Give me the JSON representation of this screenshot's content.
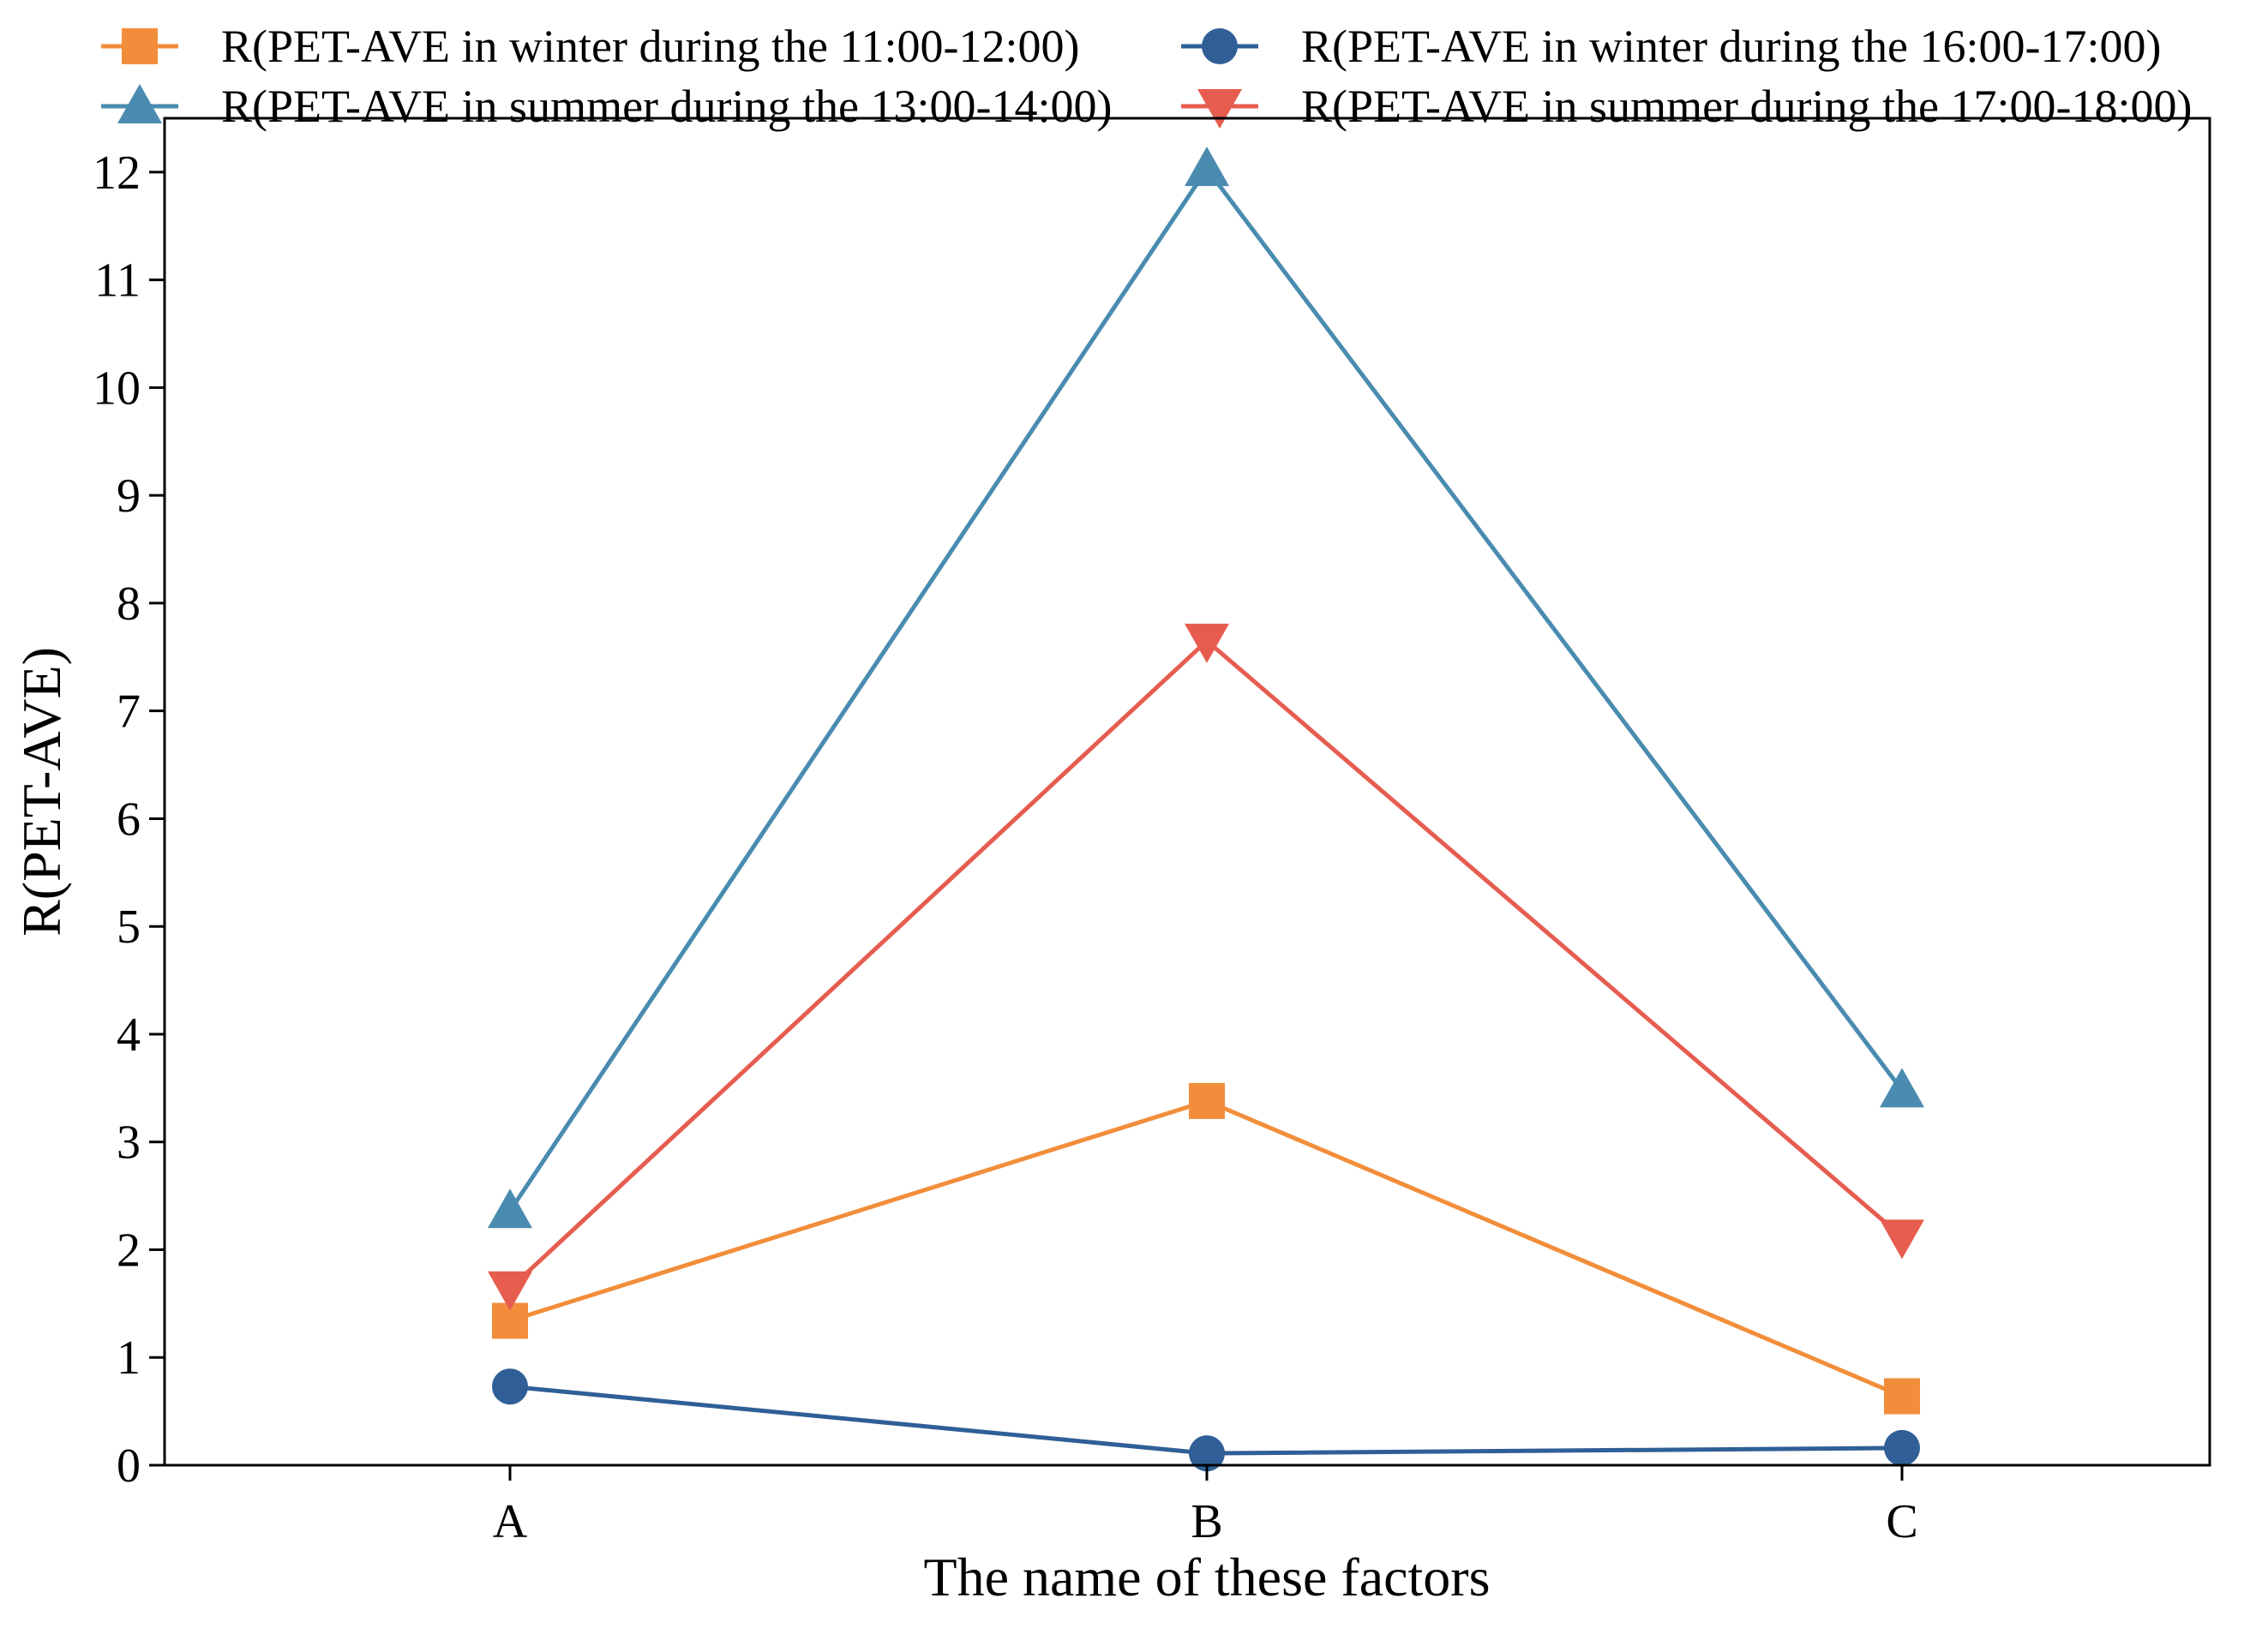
{
  "chart_data": {
    "type": "line",
    "title": "",
    "xlabel": "The name of these factors",
    "ylabel": "R(PET-AVE)",
    "categories": [
      "A",
      "B",
      "C"
    ],
    "ylim": [
      0,
      12.5
    ],
    "yticks": [
      0,
      1,
      2,
      3,
      4,
      5,
      6,
      7,
      8,
      9,
      10,
      11,
      12
    ],
    "ytick_labels": [
      "0",
      "1",
      "2",
      "3",
      "4",
      "5",
      "6",
      "7",
      "8",
      "9",
      "10",
      "11",
      "12"
    ],
    "grid": false,
    "legend_position": "top",
    "series": [
      {
        "name": "R(PET-AVE in winter during the 11:00-12:00)",
        "color": "#f28e3b",
        "marker": "square",
        "values": [
          1.34,
          3.38,
          0.64
        ]
      },
      {
        "name": "R(PET-AVE in winter during the 16:00-17:00)",
        "color": "#2f5f96",
        "marker": "circle",
        "values": [
          0.73,
          0.11,
          0.16
        ]
      },
      {
        "name": "R(PET-AVE in summer during the 13:00-14:00)",
        "color": "#4a8bb0",
        "marker": "triangle-up",
        "values": [
          2.36,
          12.03,
          3.48
        ]
      },
      {
        "name": "R(PET-AVE in summer during the 17:00-18:00)",
        "color": "#e65d4f",
        "marker": "triangle-down",
        "values": [
          1.64,
          7.65,
          2.12
        ]
      }
    ]
  }
}
